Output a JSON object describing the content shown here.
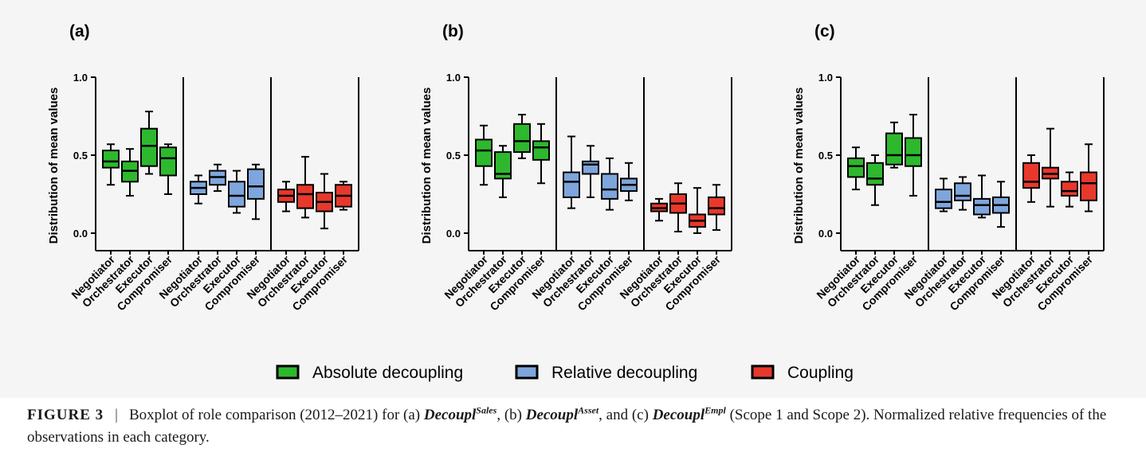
{
  "chart_data": [
    {
      "type": "boxplot",
      "panel_label": "(a)",
      "ylabel": "Distribution of mean values",
      "ylim": [
        -0.1,
        1.0
      ],
      "yticks": [
        "0.0",
        "0.5",
        "1.0"
      ],
      "groups": [
        {
          "series": "Absolute decoupling",
          "boxes": [
            {
              "category": "Negotiator",
              "whisker_low": 0.31,
              "q1": 0.42,
              "median": 0.46,
              "q3": 0.53,
              "whisker_high": 0.57
            },
            {
              "category": "Orchestrator",
              "whisker_low": 0.24,
              "q1": 0.33,
              "median": 0.4,
              "q3": 0.46,
              "whisker_high": 0.54
            },
            {
              "category": "Executor",
              "whisker_low": 0.38,
              "q1": 0.43,
              "median": 0.56,
              "q3": 0.67,
              "whisker_high": 0.78
            },
            {
              "category": "Compromiser",
              "whisker_low": 0.25,
              "q1": 0.37,
              "median": 0.48,
              "q3": 0.55,
              "whisker_high": 0.57
            }
          ]
        },
        {
          "series": "Relative decoupling",
          "boxes": [
            {
              "category": "Negotiator",
              "whisker_low": 0.19,
              "q1": 0.25,
              "median": 0.29,
              "q3": 0.33,
              "whisker_high": 0.37
            },
            {
              "category": "Orchestrator",
              "whisker_low": 0.27,
              "q1": 0.31,
              "median": 0.36,
              "q3": 0.4,
              "whisker_high": 0.44
            },
            {
              "category": "Executor",
              "whisker_low": 0.13,
              "q1": 0.17,
              "median": 0.24,
              "q3": 0.33,
              "whisker_high": 0.4
            },
            {
              "category": "Compromiser",
              "whisker_low": 0.09,
              "q1": 0.22,
              "median": 0.3,
              "q3": 0.41,
              "whisker_high": 0.44
            }
          ]
        },
        {
          "series": "Coupling",
          "boxes": [
            {
              "category": "Negotiator",
              "whisker_low": 0.14,
              "q1": 0.2,
              "median": 0.24,
              "q3": 0.28,
              "whisker_high": 0.33
            },
            {
              "category": "Orchestrator",
              "whisker_low": 0.1,
              "q1": 0.16,
              "median": 0.25,
              "q3": 0.31,
              "whisker_high": 0.49
            },
            {
              "category": "Executor",
              "whisker_low": 0.03,
              "q1": 0.14,
              "median": 0.2,
              "q3": 0.26,
              "whisker_high": 0.38
            },
            {
              "category": "Compromiser",
              "whisker_low": 0.15,
              "q1": 0.17,
              "median": 0.24,
              "q3": 0.31,
              "whisker_high": 0.33
            }
          ]
        }
      ]
    },
    {
      "type": "boxplot",
      "panel_label": "(b)",
      "ylabel": "Distribution of mean values",
      "ylim": [
        -0.1,
        1.0
      ],
      "yticks": [
        "0.0",
        "0.5",
        "1.0"
      ],
      "groups": [
        {
          "series": "Absolute decoupling",
          "boxes": [
            {
              "category": "Negotiator",
              "whisker_low": 0.31,
              "q1": 0.43,
              "median": 0.53,
              "q3": 0.6,
              "whisker_high": 0.69
            },
            {
              "category": "Orchestrator",
              "whisker_low": 0.23,
              "q1": 0.35,
              "median": 0.38,
              "q3": 0.52,
              "whisker_high": 0.56
            },
            {
              "category": "Executor",
              "whisker_low": 0.48,
              "q1": 0.52,
              "median": 0.59,
              "q3": 0.7,
              "whisker_high": 0.76
            },
            {
              "category": "Compromiser",
              "whisker_low": 0.32,
              "q1": 0.47,
              "median": 0.55,
              "q3": 0.59,
              "whisker_high": 0.7
            }
          ]
        },
        {
          "series": "Relative decoupling",
          "boxes": [
            {
              "category": "Negotiator",
              "whisker_low": 0.16,
              "q1": 0.23,
              "median": 0.33,
              "q3": 0.39,
              "whisker_high": 0.62
            },
            {
              "category": "Orchestrator",
              "whisker_low": 0.23,
              "q1": 0.38,
              "median": 0.44,
              "q3": 0.46,
              "whisker_high": 0.56
            },
            {
              "category": "Executor",
              "whisker_low": 0.15,
              "q1": 0.22,
              "median": 0.28,
              "q3": 0.38,
              "whisker_high": 0.48
            },
            {
              "category": "Compromiser",
              "whisker_low": 0.21,
              "q1": 0.27,
              "median": 0.31,
              "q3": 0.35,
              "whisker_high": 0.45
            }
          ]
        },
        {
          "series": "Coupling",
          "boxes": [
            {
              "category": "Negotiator",
              "whisker_low": 0.08,
              "q1": 0.14,
              "median": 0.16,
              "q3": 0.19,
              "whisker_high": 0.22
            },
            {
              "category": "Orchestrator",
              "whisker_low": 0.01,
              "q1": 0.13,
              "median": 0.19,
              "q3": 0.25,
              "whisker_high": 0.32
            },
            {
              "category": "Executor",
              "whisker_low": 0.0,
              "q1": 0.04,
              "median": 0.08,
              "q3": 0.12,
              "whisker_high": 0.29
            },
            {
              "category": "Compromiser",
              "whisker_low": 0.02,
              "q1": 0.12,
              "median": 0.16,
              "q3": 0.23,
              "whisker_high": 0.31
            }
          ]
        }
      ]
    },
    {
      "type": "boxplot",
      "panel_label": "(c)",
      "ylabel": "Distribution of mean values",
      "ylim": [
        -0.1,
        1.0
      ],
      "yticks": [
        "0.0",
        "0.5",
        "1.0"
      ],
      "groups": [
        {
          "series": "Absolute decoupling",
          "boxes": [
            {
              "category": "Negotiator",
              "whisker_low": 0.28,
              "q1": 0.36,
              "median": 0.43,
              "q3": 0.48,
              "whisker_high": 0.55
            },
            {
              "category": "Orchestrator",
              "whisker_low": 0.18,
              "q1": 0.31,
              "median": 0.35,
              "q3": 0.45,
              "whisker_high": 0.5
            },
            {
              "category": "Executor",
              "whisker_low": 0.42,
              "q1": 0.44,
              "median": 0.5,
              "q3": 0.64,
              "whisker_high": 0.71
            },
            {
              "category": "Compromiser",
              "whisker_low": 0.24,
              "q1": 0.43,
              "median": 0.5,
              "q3": 0.61,
              "whisker_high": 0.76
            }
          ]
        },
        {
          "series": "Relative decoupling",
          "boxes": [
            {
              "category": "Negotiator",
              "whisker_low": 0.14,
              "q1": 0.16,
              "median": 0.2,
              "q3": 0.28,
              "whisker_high": 0.35
            },
            {
              "category": "Orchestrator",
              "whisker_low": 0.15,
              "q1": 0.21,
              "median": 0.24,
              "q3": 0.32,
              "whisker_high": 0.36
            },
            {
              "category": "Executor",
              "whisker_low": 0.1,
              "q1": 0.12,
              "median": 0.18,
              "q3": 0.22,
              "whisker_high": 0.37
            },
            {
              "category": "Compromiser",
              "whisker_low": 0.04,
              "q1": 0.13,
              "median": 0.18,
              "q3": 0.23,
              "whisker_high": 0.33
            }
          ]
        },
        {
          "series": "Coupling",
          "boxes": [
            {
              "category": "Negotiator",
              "whisker_low": 0.2,
              "q1": 0.29,
              "median": 0.33,
              "q3": 0.45,
              "whisker_high": 0.5
            },
            {
              "category": "Orchestrator",
              "whisker_low": 0.17,
              "q1": 0.35,
              "median": 0.38,
              "q3": 0.42,
              "whisker_high": 0.67
            },
            {
              "category": "Executor",
              "whisker_low": 0.17,
              "q1": 0.24,
              "median": 0.27,
              "q3": 0.33,
              "whisker_high": 0.39
            },
            {
              "category": "Compromiser",
              "whisker_low": 0.14,
              "q1": 0.21,
              "median": 0.32,
              "q3": 0.39,
              "whisker_high": 0.57
            }
          ]
        }
      ]
    }
  ],
  "legend": [
    {
      "label": "Absolute decoupling",
      "color": "#2eb82e"
    },
    {
      "label": "Relative decoupling",
      "color": "#7ea6dc"
    },
    {
      "label": "Coupling",
      "color": "#e8382c"
    }
  ],
  "caption": {
    "figure_label": "FIGURE 3",
    "separator": "|",
    "part1": "Boxplot of role comparison (2012–2021) for (a) ",
    "var_a": "Decoupl",
    "sup_a": "Sales",
    "part2": ", (b) ",
    "var_b": "Decoupl",
    "sup_b": "Asset",
    "part3": ", and (c) ",
    "var_c": "Decoupl",
    "sup_c": "Empl",
    "part4": " (Scope 1 and Scope 2). Normalized relative frequencies of the observations in each category."
  }
}
